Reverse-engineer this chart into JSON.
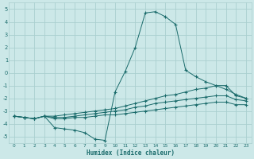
{
  "xlabel": "Humidex (Indice chaleur)",
  "background_color": "#cce8e8",
  "grid_color": "#aacfcf",
  "line_color": "#1a6b6b",
  "xlim": [
    -0.5,
    23.5
  ],
  "ylim": [
    -5.5,
    5.5
  ],
  "xticks": [
    0,
    1,
    2,
    3,
    4,
    5,
    6,
    7,
    8,
    9,
    10,
    11,
    12,
    13,
    14,
    15,
    16,
    17,
    18,
    19,
    20,
    21,
    22,
    23
  ],
  "yticks": [
    -5,
    -4,
    -3,
    -2,
    -1,
    0,
    1,
    2,
    3,
    4,
    5
  ],
  "curve1_x": [
    0,
    1,
    2,
    3,
    4,
    5,
    6,
    7,
    8,
    9,
    10,
    11,
    12,
    13,
    14,
    15,
    16,
    17,
    18,
    19,
    20,
    21,
    22,
    23
  ],
  "curve1_y": [
    -3.4,
    -3.5,
    -3.6,
    -3.4,
    -4.3,
    -4.4,
    -4.5,
    -4.7,
    -5.2,
    -5.3,
    -1.5,
    0.1,
    2.0,
    4.7,
    4.8,
    4.4,
    3.8,
    0.2,
    -0.3,
    -0.7,
    -1.0,
    -1.3,
    -1.7,
    -2.0
  ],
  "curve2_x": [
    0,
    1,
    2,
    3,
    4,
    5,
    6,
    7,
    8,
    9,
    10,
    11,
    12,
    13,
    14,
    15,
    16,
    17,
    18,
    19,
    20,
    21,
    22,
    23
  ],
  "curve2_y": [
    -3.4,
    -3.5,
    -3.6,
    -3.4,
    -3.4,
    -3.3,
    -3.2,
    -3.1,
    -3.0,
    -2.9,
    -2.8,
    -2.6,
    -2.4,
    -2.2,
    -2.0,
    -1.8,
    -1.7,
    -1.5,
    -1.3,
    -1.2,
    -1.0,
    -1.0,
    -1.8,
    -2.0
  ],
  "curve3_x": [
    0,
    1,
    2,
    3,
    4,
    5,
    6,
    7,
    8,
    9,
    10,
    11,
    12,
    13,
    14,
    15,
    16,
    17,
    18,
    19,
    20,
    21,
    22,
    23
  ],
  "curve3_y": [
    -3.4,
    -3.5,
    -3.6,
    -3.4,
    -3.5,
    -3.5,
    -3.4,
    -3.3,
    -3.2,
    -3.1,
    -3.0,
    -2.9,
    -2.7,
    -2.6,
    -2.4,
    -2.3,
    -2.2,
    -2.1,
    -2.0,
    -1.9,
    -1.8,
    -1.8,
    -2.1,
    -2.2
  ],
  "curve4_x": [
    0,
    1,
    2,
    3,
    4,
    5,
    6,
    7,
    8,
    9,
    10,
    11,
    12,
    13,
    14,
    15,
    16,
    17,
    18,
    19,
    20,
    21,
    22,
    23
  ],
  "curve4_y": [
    -3.4,
    -3.5,
    -3.6,
    -3.4,
    -3.6,
    -3.6,
    -3.5,
    -3.5,
    -3.4,
    -3.3,
    -3.3,
    -3.2,
    -3.1,
    -3.0,
    -2.9,
    -2.8,
    -2.7,
    -2.6,
    -2.5,
    -2.4,
    -2.3,
    -2.3,
    -2.5,
    -2.5
  ]
}
